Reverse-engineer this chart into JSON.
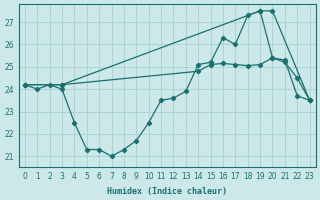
{
  "xlabel": "Humidex (Indice chaleur)",
  "background_color": "#cce8e8",
  "line_color": "#1a7070",
  "grid_color": "#aad4d4",
  "xlim": [
    -0.5,
    23.5
  ],
  "ylim": [
    20.5,
    27.8
  ],
  "yticks": [
    21,
    22,
    23,
    24,
    25,
    26,
    27
  ],
  "xticks": [
    0,
    1,
    2,
    3,
    4,
    5,
    6,
    7,
    8,
    9,
    10,
    11,
    12,
    13,
    14,
    15,
    16,
    17,
    18,
    19,
    20,
    21,
    22,
    23
  ],
  "line1_x": [
    0,
    3,
    19,
    20,
    23
  ],
  "line1_y": [
    24.2,
    24.2,
    27.5,
    27.5,
    23.5
  ],
  "line2_x": [
    0,
    3,
    14,
    15,
    16,
    17,
    18,
    19,
    20,
    21,
    22,
    23
  ],
  "line2_y": [
    24.2,
    24.2,
    24.8,
    25.1,
    25.15,
    25.1,
    25.05,
    25.1,
    25.4,
    25.3,
    23.7,
    23.5
  ],
  "line3_x": [
    0,
    1,
    2,
    3,
    4,
    5,
    6,
    7,
    8,
    9,
    10,
    11,
    12,
    13,
    14,
    15,
    16,
    17,
    18,
    19,
    20,
    21,
    22,
    23
  ],
  "line3_y": [
    24.2,
    24.0,
    24.2,
    24.0,
    22.5,
    21.3,
    21.3,
    21.0,
    21.3,
    21.7,
    22.5,
    23.5,
    23.6,
    23.9,
    25.1,
    25.2,
    26.3,
    26.0,
    27.3,
    27.5,
    25.4,
    25.2,
    24.5,
    23.5
  ]
}
